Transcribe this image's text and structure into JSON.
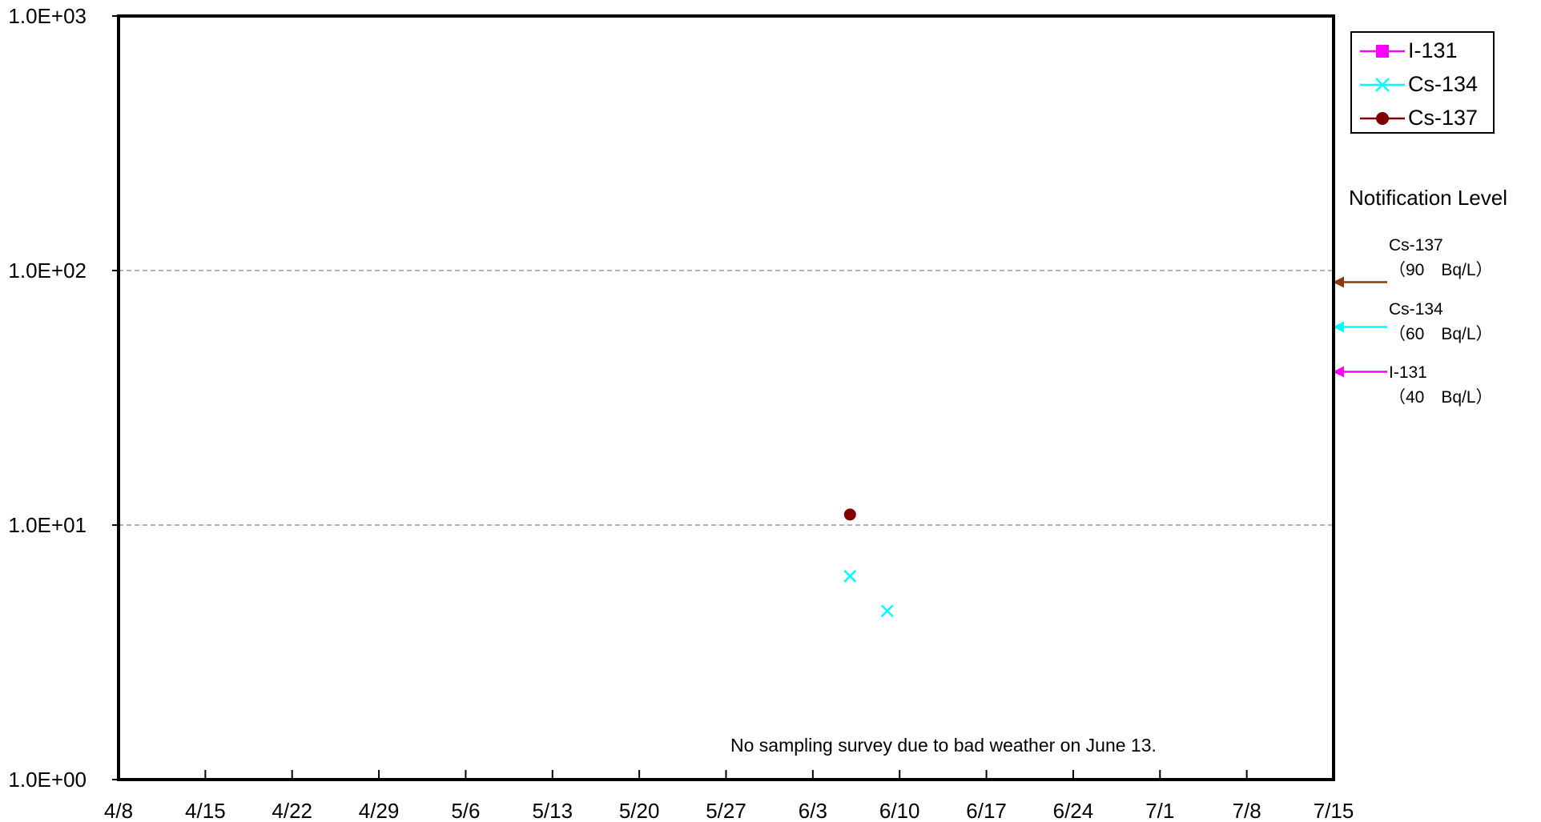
{
  "chart_data": {
    "type": "scatter",
    "title": "",
    "xlabel": "",
    "ylabel": "",
    "y_scale": "log",
    "ylim": [
      1,
      1000
    ],
    "xlim": [
      "4/8",
      "7/15"
    ],
    "x_tick_labels": [
      "4/8",
      "4/15",
      "4/22",
      "4/29",
      "5/6",
      "5/13",
      "5/20",
      "5/27",
      "6/3",
      "6/10",
      "6/17",
      "6/24",
      "7/1",
      "7/8",
      "7/15"
    ],
    "y_tick_labels": [
      "1.0E+00",
      "1.0E+01",
      "1.0E+02",
      "1.0E+03"
    ],
    "y_tick_values": [
      1,
      10,
      100,
      1000
    ],
    "grid": "dashed horizontal at 1.0E+01 and 1.0E+02",
    "legend_position": "top-right, outside plot",
    "series": [
      {
        "name": "I-131",
        "color": "#ff00ff",
        "marker": "square",
        "points": []
      },
      {
        "name": "Cs-134",
        "color": "#00ffff",
        "marker": "x",
        "points": [
          {
            "x": "6/6",
            "y": 6.3
          },
          {
            "x": "6/9",
            "y": 4.6
          }
        ]
      },
      {
        "name": "Cs-137",
        "color": "#800000",
        "marker": "circle",
        "points": [
          {
            "x": "6/6",
            "y": 11
          }
        ]
      }
    ],
    "notification": {
      "title": "Notification Level",
      "levels": [
        {
          "nuclide": "Cs-137",
          "value_label": "（90　Bq/L）",
          "value": 90,
          "color": "#8b3a0f"
        },
        {
          "nuclide": "Cs-134",
          "value_label": "（60　Bq/L）",
          "value": 60,
          "color": "#00ffff"
        },
        {
          "nuclide": "I-131",
          "value_label": "（40　Bq/L）",
          "value": 40,
          "color": "#ff00ff"
        }
      ]
    },
    "annotation": "No sampling survey due to bad weather on June 13."
  }
}
